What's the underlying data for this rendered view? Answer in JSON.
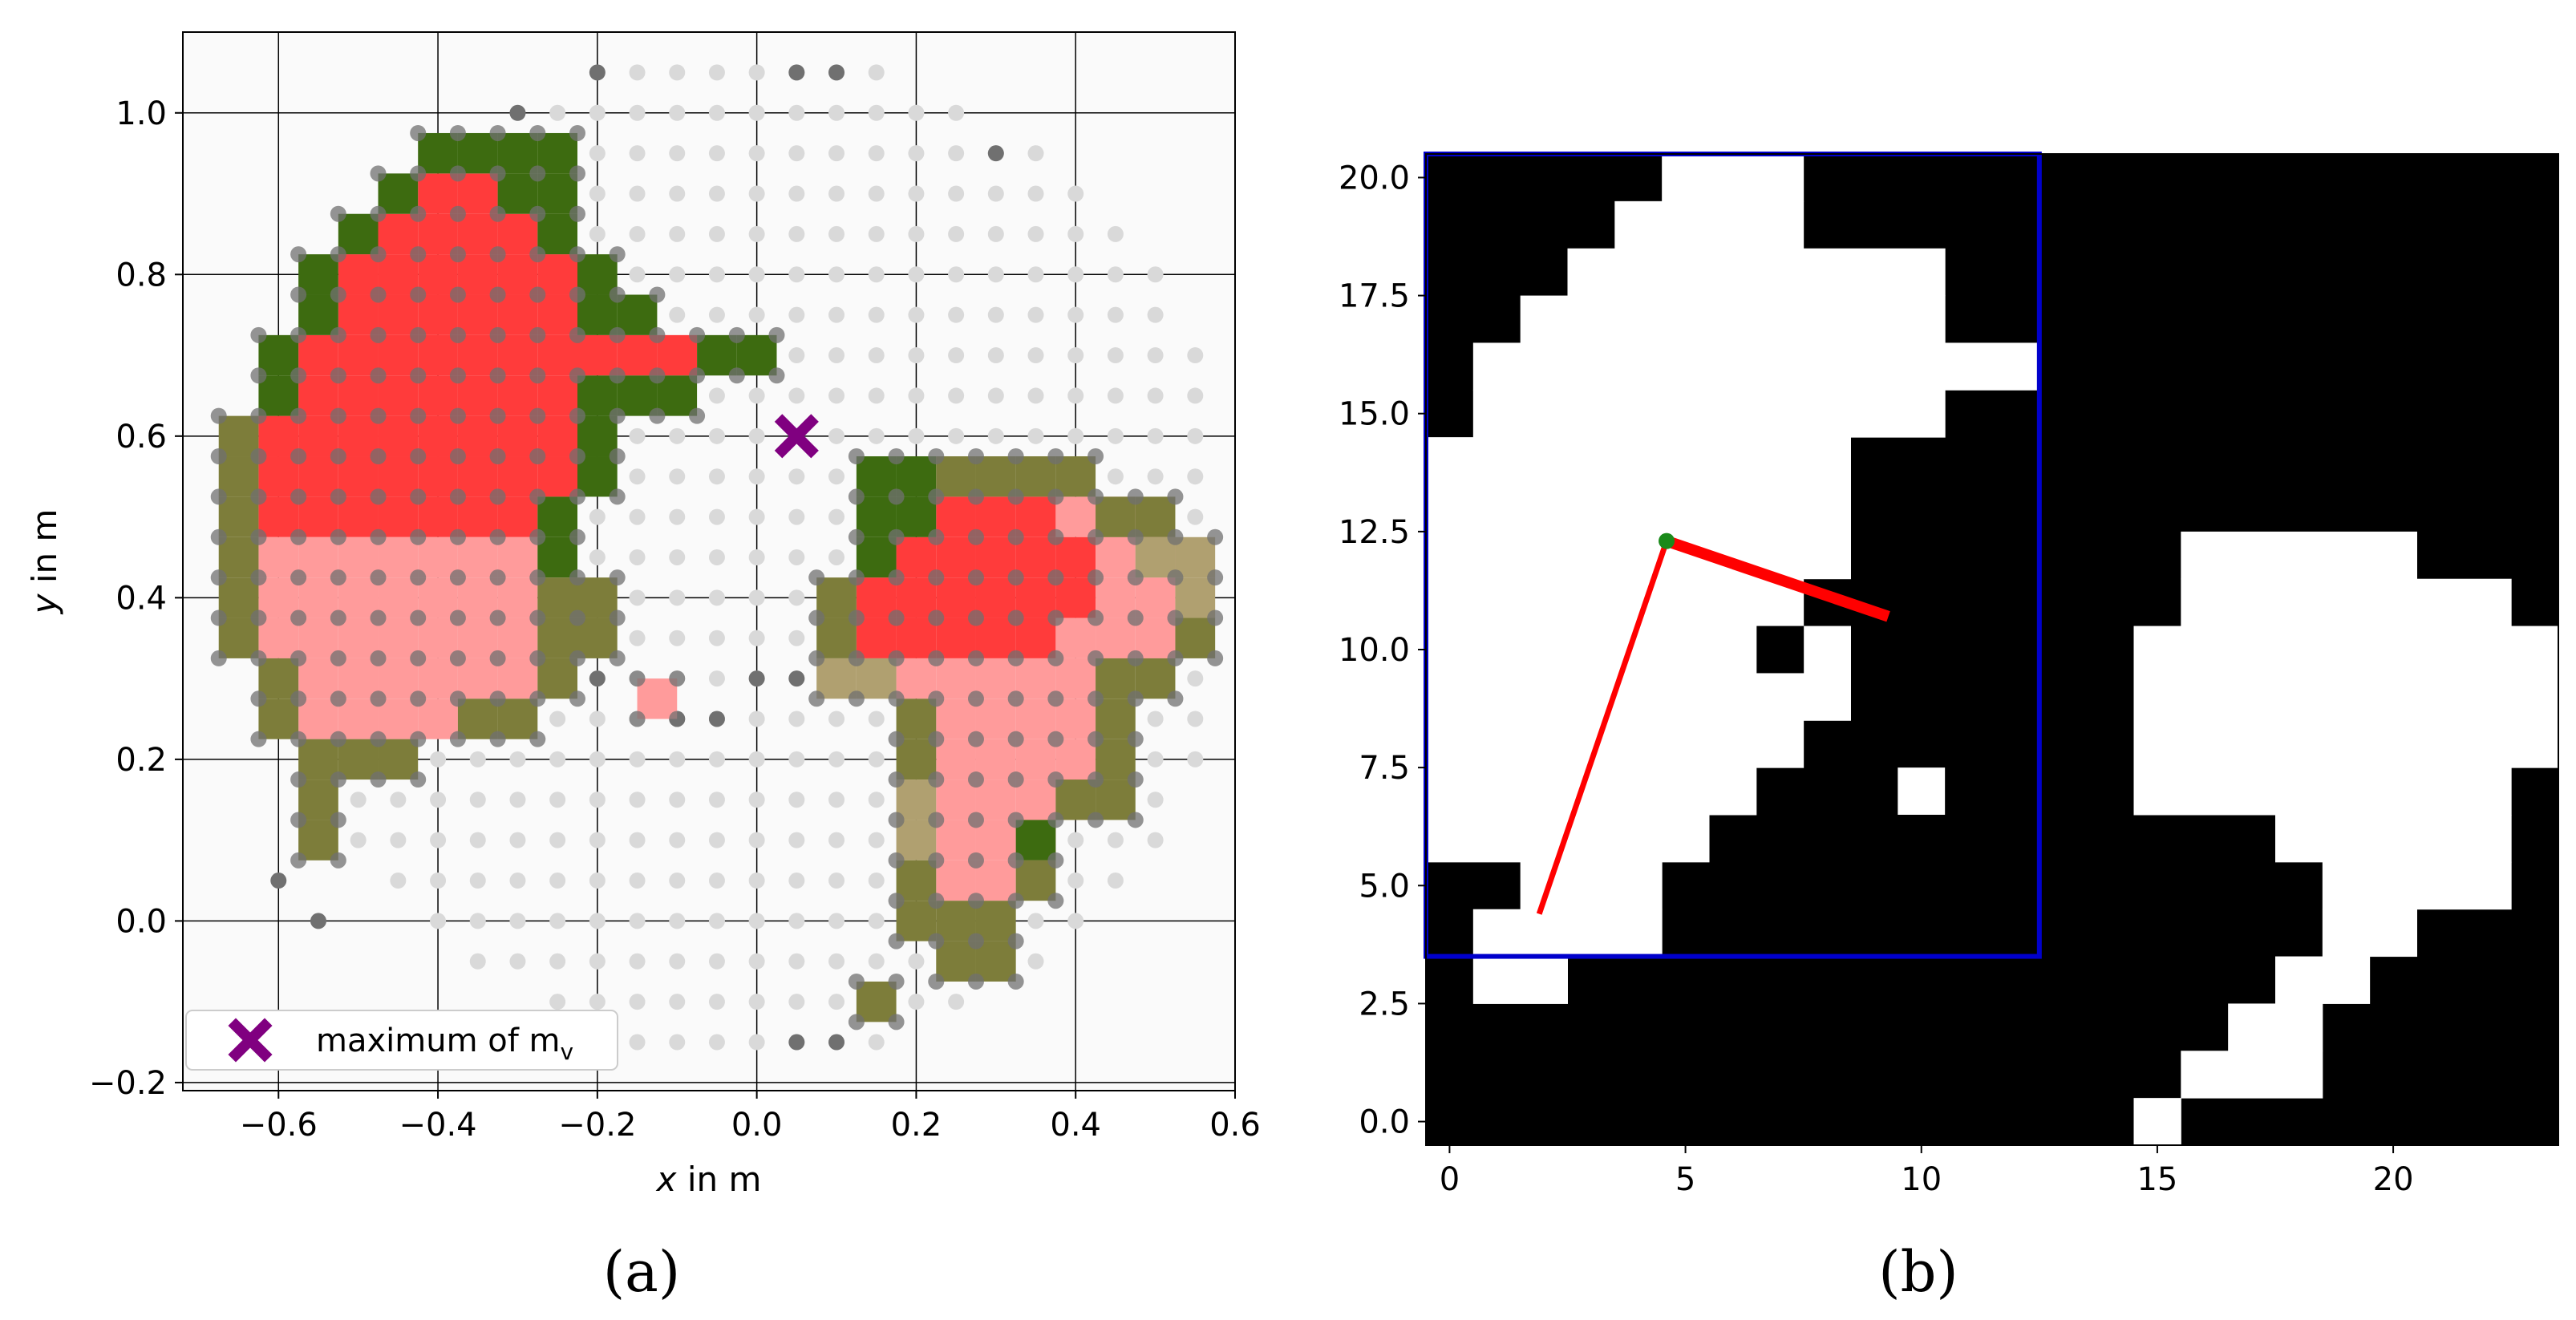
{
  "panels": [
    {
      "label": "(a)",
      "chart_data": {
        "type": "scatter",
        "xlabel_var": "x",
        "xlabel_unit": " in m",
        "ylabel_var": "y",
        "ylabel_unit": " in m",
        "xlim": [
          -0.72,
          0.6
        ],
        "ylim": [
          -0.21,
          1.1
        ],
        "xticks": [
          -0.6,
          -0.4,
          -0.2,
          0.0,
          0.2,
          0.4,
          0.6
        ],
        "xtick_labels": [
          "−0.6",
          "−0.4",
          "−0.2",
          "0.0",
          "0.2",
          "0.4",
          "0.6"
        ],
        "yticks": [
          -0.2,
          0.0,
          0.2,
          0.4,
          0.6,
          0.8,
          1.0
        ],
        "ytick_labels": [
          "−0.2",
          "0.0",
          "0.2",
          "0.4",
          "0.6",
          "0.8",
          "1.0"
        ],
        "grid": true,
        "cell_size": 0.05,
        "colors": {
          "red_cell": "#ff3b3b",
          "pink_cell": "#ff9b9b",
          "green_cell": "#3d6b10",
          "olive_cell": "#7d7d3a",
          "tan_cell": "#b0a070",
          "dark_point": "#707070",
          "light_point": "#d9d9d9",
          "marker": "#800080",
          "background": "#fafafa"
        },
        "marker_point": {
          "x": 0.05,
          "y": 0.6
        },
        "legend": {
          "placement": "lower-left",
          "label_text": "maximum of m",
          "label_subscript": "v"
        }
      }
    },
    {
      "label": "(b)",
      "chart_data": {
        "type": "heatmap",
        "xlim": [
          -0.5,
          23.5
        ],
        "ylim": [
          -0.5,
          20.5
        ],
        "xticks": [
          0,
          5,
          10,
          15,
          20
        ],
        "xtick_labels": [
          "0",
          "5",
          "10",
          "15",
          "20"
        ],
        "yticks": [
          0.0,
          2.5,
          5.0,
          7.5,
          10.0,
          12.5,
          15.0,
          17.5,
          20.0
        ],
        "ytick_labels": [
          "0.0",
          "2.5",
          "5.0",
          "7.5",
          "10.0",
          "12.5",
          "15.0",
          "17.5",
          "20.0"
        ],
        "colors": {
          "occupied": "#000000",
          "free": "#ffffff",
          "box": "#0000cc",
          "line": "#ff0000",
          "center": "#1a8a1a"
        },
        "left_blob_rows": [
          [
            3,
            1,
            2
          ],
          [
            4,
            1,
            4
          ],
          [
            5,
            2,
            4
          ],
          [
            6,
            0,
            5
          ],
          [
            7,
            0,
            6
          ],
          [
            8,
            0,
            7
          ],
          [
            9,
            0,
            8
          ],
          [
            10,
            0,
            8
          ],
          [
            11,
            0,
            7
          ],
          [
            12,
            0,
            8
          ],
          [
            13,
            0,
            8
          ],
          [
            14,
            0,
            8
          ],
          [
            15,
            1,
            10
          ],
          [
            16,
            1,
            12
          ],
          [
            17,
            2,
            10
          ],
          [
            18,
            3,
            10
          ],
          [
            19,
            4,
            7
          ],
          [
            20,
            5,
            7
          ]
        ],
        "left_blob_hole": [
          10,
          7
        ],
        "right_blob_rows": [
          [
            0,
            15,
            15
          ],
          [
            1,
            16,
            18
          ],
          [
            2,
            17,
            18
          ],
          [
            3,
            18,
            19
          ],
          [
            4,
            19,
            20
          ],
          [
            5,
            19,
            22
          ],
          [
            6,
            18,
            22
          ],
          [
            7,
            15,
            22
          ],
          [
            8,
            15,
            23
          ],
          [
            9,
            15,
            23
          ],
          [
            10,
            15,
            23
          ],
          [
            11,
            16,
            22
          ],
          [
            12,
            16,
            20
          ]
        ],
        "box": {
          "x0": -0.5,
          "x1": 12.5,
          "y0": 3.5,
          "y1": 20.5
        },
        "center_point": {
          "x": 4.6,
          "y": 12.3
        },
        "line_thin_end": {
          "x": 1.9,
          "y": 4.4
        },
        "line_thick_end": {
          "x": 9.3,
          "y": 10.7
        }
      }
    }
  ]
}
